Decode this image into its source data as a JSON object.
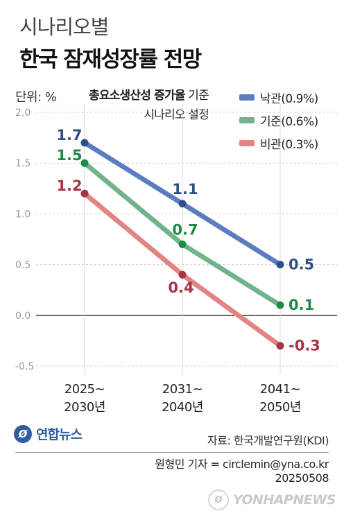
{
  "header": {
    "kicker": "시나리오별",
    "title": "한국 잠재성장률 전망"
  },
  "unit_label": "단위: %",
  "note": {
    "bold": "총요소생산성 증가율",
    "rest": " 기준",
    "line2": "시나리오 설정"
  },
  "chart_data": {
    "type": "line",
    "categories": [
      "2025~2030년",
      "2031~2040년",
      "2041~2050년"
    ],
    "category_lines": [
      [
        "2025~",
        "2030년"
      ],
      [
        "2031~",
        "2040년"
      ],
      [
        "2041~",
        "2050년"
      ]
    ],
    "series": [
      {
        "name": "낙관(0.9%)",
        "values": [
          1.7,
          1.1,
          0.5
        ],
        "labels": [
          "1.7",
          "1.1",
          "0.5"
        ],
        "color": "#5b7dbf",
        "label_color": "#2f4f86",
        "point_color": "#2f4f86"
      },
      {
        "name": "기준(0.6%)",
        "values": [
          1.5,
          0.7,
          0.1
        ],
        "labels": [
          "1.5",
          "0.7",
          "0.1"
        ],
        "color": "#73b38b",
        "label_color": "#1f8a46",
        "point_color": "#1f8a46"
      },
      {
        "name": "비관(0.3%)",
        "values": [
          1.2,
          0.4,
          -0.3
        ],
        "labels": [
          "1.2",
          "0.4",
          "-0.3"
        ],
        "color": "#e38484",
        "label_color": "#a83246",
        "point_color": "#a83246"
      }
    ],
    "ylim": [
      -0.5,
      2.0
    ],
    "yticks": [
      2.0,
      1.5,
      1.0,
      0.5,
      0.0,
      -0.5
    ],
    "ytick_labels": [
      "2.0",
      "1.5",
      "1.0",
      "0.5",
      "0.0",
      "-0.5"
    ],
    "grid": true,
    "legend_position": "top-right"
  },
  "footer": {
    "logo_text": "연합뉴스",
    "source": "자료: 한국개발연구원(KDI)",
    "reporter": "원형민 기자 = circlemin@yna.co.kr",
    "date": "20250508",
    "watermark": "YONHAPNEWS"
  }
}
